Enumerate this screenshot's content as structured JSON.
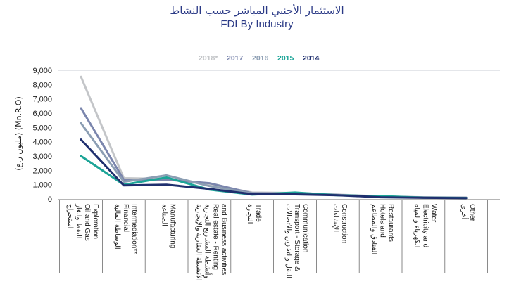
{
  "chart_data": {
    "type": "line",
    "title_ar": "الاستثمار الأجنبي المباشر حسب النشاط",
    "title_en": "FDI By Industry",
    "ylabel": "(مليون ر.ع) (Mn.R.O)",
    "yticks": [
      "0",
      "1,000",
      "2,000",
      "3,000",
      "4,000",
      "5,000",
      "6,000",
      "7,000",
      "8,000",
      "9,000"
    ],
    "ylim": [
      0,
      9000
    ],
    "grid": false,
    "legend_position": "top",
    "categories": [
      [
        "استخراج",
        "النفط والغاز",
        "Oil and Gas",
        "Exploration"
      ],
      [
        "الوساطة المالية",
        "Financial",
        "Intermediation**"
      ],
      [
        "الصناعة",
        "Manufacturing"
      ],
      [
        "الأنشطة العقارية والإيجارية",
        "وأنشطة المشاريع التجارية",
        "Real estate - Renting",
        "and Business activities"
      ],
      [
        "التجارة",
        "Trade"
      ],
      [
        "النقل والتخزين والاتصالات",
        "Transport - Storage &",
        "Communication"
      ],
      [
        "الإنشاءات",
        "Construction"
      ],
      [
        "الفنادق والمطاعم",
        "Hotels and",
        "Restaurants"
      ],
      [
        "الكهرباء والمياه",
        "Electricity and",
        "Water"
      ],
      [
        "أخرى",
        "Other"
      ]
    ],
    "series": [
      {
        "name": "2018*",
        "color": "#c3c5c8",
        "values": [
          8550,
          1450,
          1400,
          1000,
          450,
          420,
          300,
          180,
          120,
          100
        ]
      },
      {
        "name": "2017",
        "color": "#7b86ad",
        "values": [
          6350,
          1350,
          1350,
          1100,
          400,
          380,
          280,
          170,
          110,
          90
        ]
      },
      {
        "name": "2016",
        "color": "#8c9eb3",
        "values": [
          5300,
          1200,
          1650,
          900,
          380,
          360,
          270,
          160,
          100,
          80
        ]
      },
      {
        "name": "2015",
        "color": "#1ca497",
        "values": [
          3000,
          1000,
          1500,
          650,
          300,
          450,
          250,
          200,
          90,
          70
        ]
      },
      {
        "name": "2014",
        "color": "#1f2f6e",
        "values": [
          4150,
          950,
          1000,
          700,
          330,
          320,
          260,
          120,
          80,
          60
        ]
      }
    ]
  }
}
